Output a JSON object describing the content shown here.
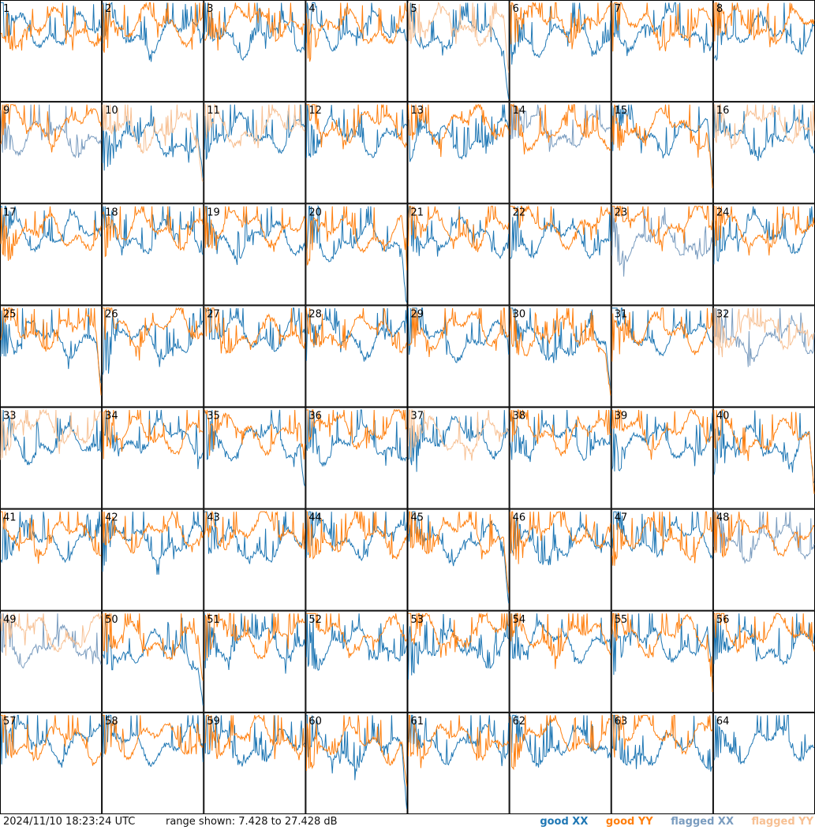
{
  "footer": {
    "timestamp": "2024/11/10 18:23:24 UTC",
    "range": "range shown: 7.428 to 27.428 dB"
  },
  "legend": [
    {
      "label": "good XX",
      "color": "#1f77b4"
    },
    {
      "label": "good YY",
      "color": "#ff7f0e"
    },
    {
      "label": "flagged XX",
      "color": "#7a9cbf"
    },
    {
      "label": "flagged YY",
      "color": "#f7c093"
    }
  ],
  "chart_data": {
    "type": "line",
    "layout": "8x8 small multiples",
    "ylim": [
      7.428,
      27.428
    ],
    "yunit": "dB",
    "panels": [
      {
        "id": "1",
        "xx": "good",
        "yy": "good"
      },
      {
        "id": "2",
        "xx": "good",
        "yy": "good"
      },
      {
        "id": "3",
        "xx": "good",
        "yy": "good"
      },
      {
        "id": "4",
        "xx": "good",
        "yy": "good"
      },
      {
        "id": "5",
        "xx": "good",
        "yy": "flagged"
      },
      {
        "id": "6",
        "xx": "good",
        "yy": "good"
      },
      {
        "id": "7",
        "xx": "good",
        "yy": "good"
      },
      {
        "id": "8",
        "xx": "good",
        "yy": "good"
      },
      {
        "id": "9",
        "xx": "flagged",
        "yy": "good"
      },
      {
        "id": "10",
        "xx": "good",
        "yy": "flagged"
      },
      {
        "id": "11",
        "xx": "good",
        "yy": "flagged"
      },
      {
        "id": "12",
        "xx": "good",
        "yy": "good"
      },
      {
        "id": "13",
        "xx": "good",
        "yy": "good"
      },
      {
        "id": "14",
        "xx": "flagged",
        "yy": "good"
      },
      {
        "id": "15",
        "xx": "good",
        "yy": "good"
      },
      {
        "id": "16",
        "xx": "good",
        "yy": "flagged"
      },
      {
        "id": "17",
        "xx": "good",
        "yy": "good"
      },
      {
        "id": "18",
        "xx": "good",
        "yy": "good"
      },
      {
        "id": "19",
        "xx": "good",
        "yy": "good"
      },
      {
        "id": "20",
        "xx": "good",
        "yy": "good"
      },
      {
        "id": "21",
        "xx": "good",
        "yy": "good"
      },
      {
        "id": "22",
        "xx": "good",
        "yy": "good"
      },
      {
        "id": "23",
        "xx": "flagged",
        "yy": "good"
      },
      {
        "id": "24",
        "xx": "good",
        "yy": "good"
      },
      {
        "id": "25",
        "xx": "good",
        "yy": "good"
      },
      {
        "id": "26",
        "xx": "good",
        "yy": "good"
      },
      {
        "id": "27",
        "xx": "good",
        "yy": "good"
      },
      {
        "id": "28",
        "xx": "good",
        "yy": "good"
      },
      {
        "id": "29",
        "xx": "good",
        "yy": "good"
      },
      {
        "id": "30",
        "xx": "good",
        "yy": "good"
      },
      {
        "id": "31",
        "xx": "good",
        "yy": "good"
      },
      {
        "id": "32",
        "xx": "flagged",
        "yy": "flagged"
      },
      {
        "id": "33",
        "xx": "good",
        "yy": "flagged"
      },
      {
        "id": "34",
        "xx": "good",
        "yy": "good"
      },
      {
        "id": "35",
        "xx": "good",
        "yy": "good"
      },
      {
        "id": "36",
        "xx": "good",
        "yy": "good"
      },
      {
        "id": "37",
        "xx": "good",
        "yy": "flagged"
      },
      {
        "id": "38",
        "xx": "good",
        "yy": "good"
      },
      {
        "id": "39",
        "xx": "good",
        "yy": "good"
      },
      {
        "id": "40",
        "xx": "good",
        "yy": "good"
      },
      {
        "id": "41",
        "xx": "good",
        "yy": "good"
      },
      {
        "id": "42",
        "xx": "good",
        "yy": "good"
      },
      {
        "id": "43",
        "xx": "good",
        "yy": "good"
      },
      {
        "id": "44",
        "xx": "good",
        "yy": "good"
      },
      {
        "id": "45",
        "xx": "good",
        "yy": "good"
      },
      {
        "id": "46",
        "xx": "good",
        "yy": "good"
      },
      {
        "id": "47",
        "xx": "good",
        "yy": "good"
      },
      {
        "id": "48",
        "xx": "flagged",
        "yy": "good"
      },
      {
        "id": "49",
        "xx": "flagged",
        "yy": "flagged"
      },
      {
        "id": "50",
        "xx": "good",
        "yy": "good"
      },
      {
        "id": "51",
        "xx": "good",
        "yy": "good"
      },
      {
        "id": "52",
        "xx": "good",
        "yy": "good"
      },
      {
        "id": "53",
        "xx": "good",
        "yy": "good"
      },
      {
        "id": "54",
        "xx": "good",
        "yy": "good"
      },
      {
        "id": "55",
        "xx": "good",
        "yy": "good"
      },
      {
        "id": "56",
        "xx": "good",
        "yy": "good"
      },
      {
        "id": "57",
        "xx": "good",
        "yy": "good"
      },
      {
        "id": "58",
        "xx": "good",
        "yy": "good"
      },
      {
        "id": "59",
        "xx": "good",
        "yy": "good"
      },
      {
        "id": "60",
        "xx": "good",
        "yy": "good"
      },
      {
        "id": "61",
        "xx": "good",
        "yy": "good"
      },
      {
        "id": "62",
        "xx": "good",
        "yy": "good"
      },
      {
        "id": "63",
        "xx": "good",
        "yy": "good"
      },
      {
        "id": "64",
        "xx": "good",
        "yy": "none"
      }
    ]
  }
}
